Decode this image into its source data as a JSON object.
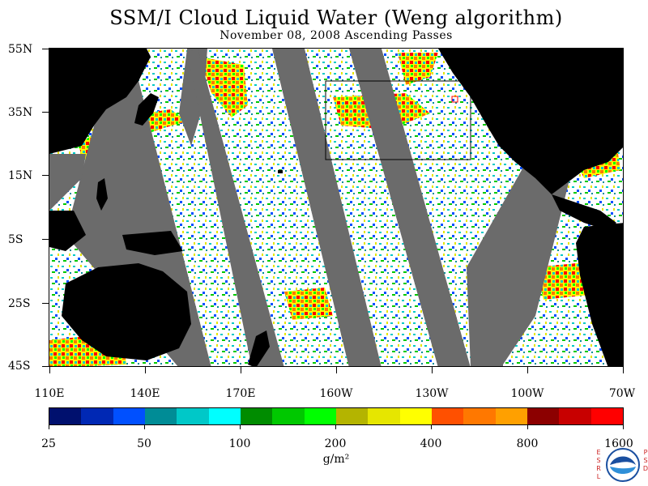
{
  "title": "SSM/I Cloud Liquid Water (Weng algorithm)",
  "subtitle": "November 08, 2008  Ascending Passes",
  "axes": {
    "latitude_labels": [
      "55N",
      "35N",
      "15N",
      "5S",
      "25S",
      "45S"
    ],
    "longitude_labels": [
      "110E",
      "140E",
      "170E",
      "160W",
      "130W",
      "100W",
      "70W"
    ]
  },
  "colorbar": {
    "colors": [
      "#00106e",
      "#0028b4",
      "#0050ff",
      "#008c96",
      "#00c8c8",
      "#00ffff",
      "#008c00",
      "#00c800",
      "#00ff00",
      "#b4b400",
      "#e6e600",
      "#ffff00",
      "#ff5000",
      "#ff7800",
      "#ffa000",
      "#8c0000",
      "#c80000",
      "#ff0000"
    ],
    "tick_labels": [
      "25",
      "50",
      "100",
      "200",
      "400",
      "800",
      "1600"
    ],
    "units": "g/m²"
  },
  "map_colors": {
    "land": "#000000",
    "no_data_swath_gap": "#6b6b6b",
    "clear": "#ffffff"
  },
  "logo": {
    "left_letters": [
      "E",
      "S",
      "R",
      "L"
    ],
    "right_letters": [
      "P",
      "S",
      "D"
    ],
    "seal_text": "NOAA"
  }
}
